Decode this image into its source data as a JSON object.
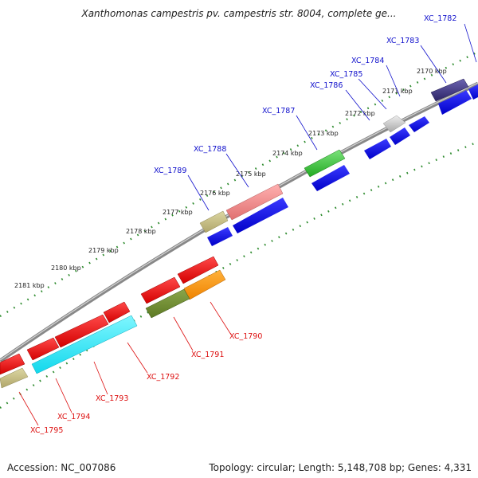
{
  "title": "Xanthomonas campestris pv. campestris str. 8004, complete ge...",
  "footer": {
    "accession": "Accession: NC_007086",
    "summary": "Topology: circular; Length: 5,148,708 bp; Genes: 4,331"
  },
  "colors": {
    "forward_label": "#1010cc",
    "reverse_label": "#dd1010",
    "backbone": "#888888",
    "ticks": "#2e8b2e"
  },
  "kbp_labels": [
    "2170 kbp",
    "2171 kbp",
    "2172 kbp",
    "2173 kbp",
    "2174 kbp",
    "2175 kbp",
    "2176 kbp",
    "2177 kbp",
    "2178 kbp",
    "2179 kbp",
    "2180 kbp",
    "2181 kbp"
  ],
  "forward_genes": [
    "XC_1782",
    "XC_1783",
    "XC_1784",
    "XC_1785",
    "XC_1786",
    "XC_1787",
    "XC_1788",
    "XC_1789"
  ],
  "reverse_genes": [
    "XC_1790",
    "XC_1791",
    "XC_1792",
    "XC_1793",
    "XC_1794",
    "XC_1795"
  ]
}
